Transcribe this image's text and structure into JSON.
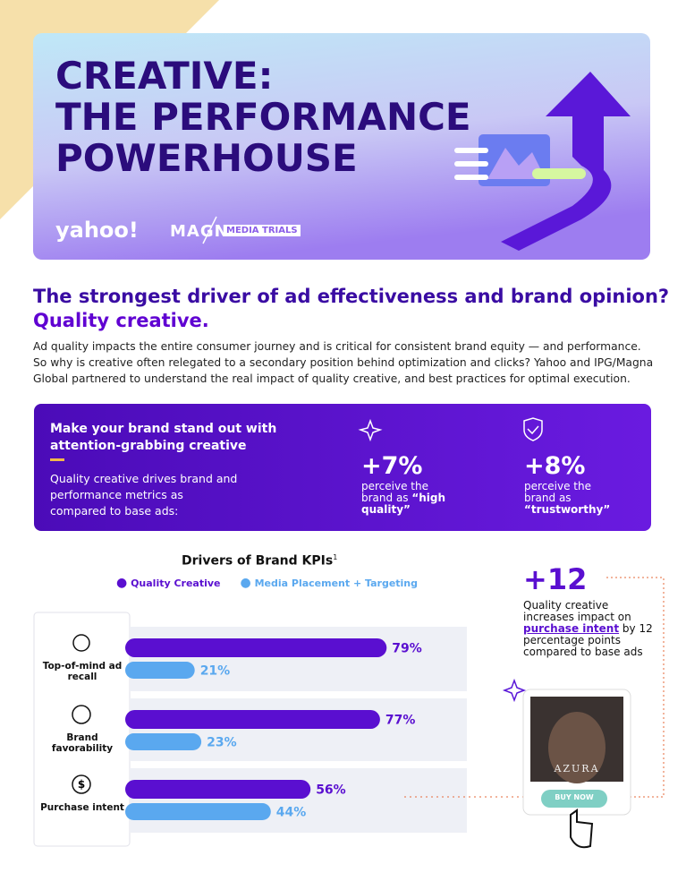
{
  "header": {
    "title": [
      "CREATIVE:",
      "THE PERFORMANCE",
      "POWERHOUSE"
    ],
    "logos": [
      "yahoo!",
      "MAGNA",
      "MEDIA TRIALS"
    ]
  },
  "headline": [
    "The strongest driver of ad effectiveness and brand opinion?",
    "Quality creative."
  ],
  "intro": "Ad quality impacts the entire consumer journey and is critical for consistent brand equity — and performance. So why is creative often relegated to a secondary position behind optimization and clicks? Yahoo and IPG/Magna Global partnered to understand the real impact of quality creative, and best practices for optimal execution.",
  "highlight": {
    "heading": "Make your brand stand out with attention-grabbing creative",
    "text": "Quality creative drives brand and performance metrics as compared to base ads:",
    "stats": [
      {
        "value": "+7%",
        "text": "perceive the brand as",
        "emphasis": "“high quality”"
      },
      {
        "value": "+8%",
        "text": "perceive the brand as",
        "emphasis": "“trustworthy”"
      }
    ]
  },
  "chart_data": {
    "type": "bar",
    "orientation": "horizontal",
    "title": "Drivers of Brand KPIs",
    "title_note": "1",
    "categories": [
      "Top-of-mind ad recall",
      "Brand favorability",
      "Purchase intent"
    ],
    "series": [
      {
        "name": "Quality Creative",
        "color": "#5a0fd0",
        "values": [
          79,
          77,
          56
        ],
        "value_labels": [
          "79%",
          "77%",
          "56%"
        ]
      },
      {
        "name": "Media Placement + Targeting",
        "color": "#5aa8ef",
        "values": [
          21,
          23,
          44
        ],
        "value_labels": [
          "21%",
          "23%",
          "44%"
        ]
      }
    ]
  },
  "callout": {
    "value": "+12",
    "text": [
      "Quality creative increases impact on",
      "purchase intent",
      "by 12 percentage points compared to base ads"
    ]
  },
  "ad": {
    "brand": "AZURA",
    "button": "BUY NOW"
  }
}
